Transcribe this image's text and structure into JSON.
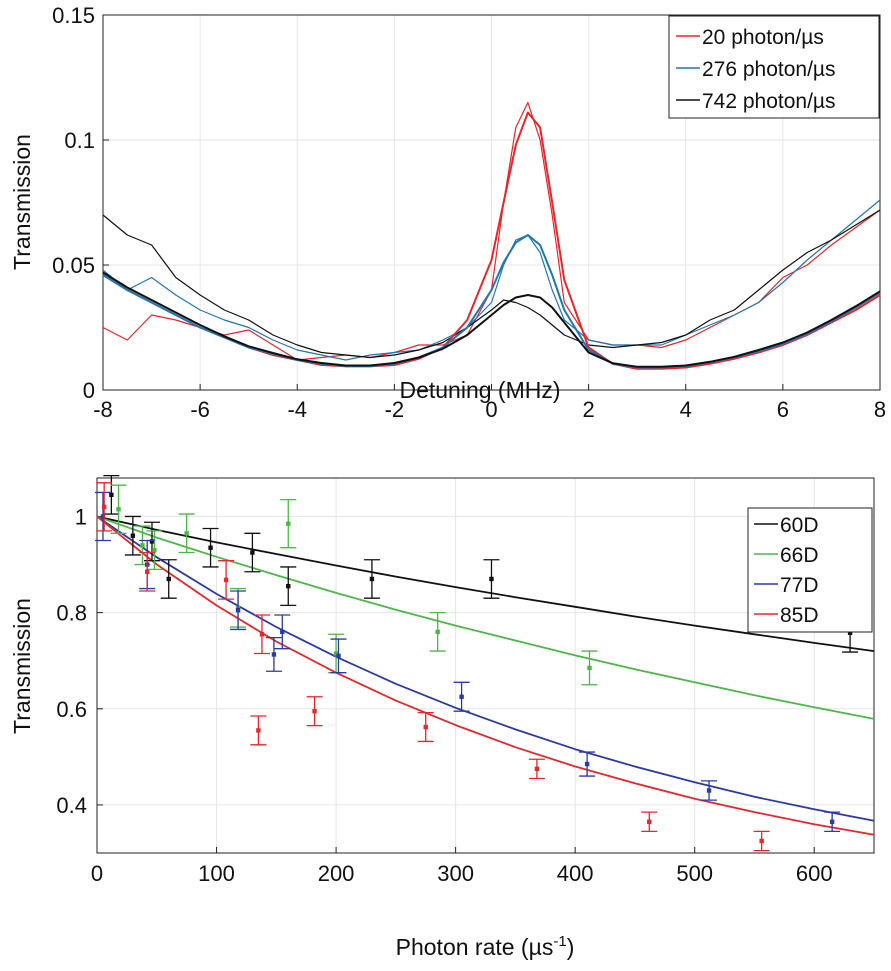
{
  "chart_data": [
    {
      "type": "line",
      "xlabel": "Detuning (MHz)",
      "ylabel": "Transmission",
      "xlim": [
        -8,
        8
      ],
      "ylim": [
        0,
        0.15
      ],
      "xticks": [
        "-8",
        "-6",
        "-4",
        "-2",
        "0",
        "2",
        "4",
        "6",
        "8"
      ],
      "yticks": [
        "0",
        "0.05",
        "0.1",
        "0.15"
      ],
      "grid": true,
      "legend": "top-right",
      "series": [
        {
          "name": "20 photon/µs",
          "color": "#e8262b",
          "x": [
            -8,
            -7.5,
            -7,
            -6.5,
            -6,
            -5.5,
            -5,
            -4.5,
            -4,
            -3.5,
            -3,
            -2.5,
            -2,
            -1.5,
            -1,
            -0.5,
            0,
            0.25,
            0.5,
            0.75,
            1,
            1.25,
            1.5,
            2,
            2.5,
            3,
            3.5,
            4,
            4.5,
            5,
            5.5,
            6,
            6.5,
            7,
            7.5,
            8
          ],
          "measured": [
            0.025,
            0.02,
            0.03,
            0.028,
            0.025,
            0.022,
            0.024,
            0.018,
            0.012,
            0.013,
            0.014,
            0.013,
            0.015,
            0.018,
            0.018,
            0.022,
            0.04,
            0.075,
            0.105,
            0.115,
            0.1,
            0.07,
            0.035,
            0.02,
            0.018,
            0.018,
            0.017,
            0.02,
            0.025,
            0.03,
            0.035,
            0.045,
            0.05,
            0.058,
            0.065,
            0.072
          ],
          "fit": [
            0.046,
            0.04,
            0.035,
            0.03,
            0.025,
            0.021,
            0.017,
            0.014,
            0.012,
            0.01,
            0.0095,
            0.0095,
            0.01,
            0.0125,
            0.017,
            0.028,
            0.052,
            0.075,
            0.098,
            0.111,
            0.105,
            0.075,
            0.044,
            0.017,
            0.0105,
            0.0085,
            0.0085,
            0.009,
            0.0105,
            0.0125,
            0.015,
            0.018,
            0.022,
            0.027,
            0.032,
            0.038
          ]
        },
        {
          "name": "276 photon/µs",
          "color": "#1f77b4",
          "x": [
            -8,
            -7.5,
            -7,
            -6.5,
            -6,
            -5.5,
            -5,
            -4.5,
            -4,
            -3.5,
            -3,
            -2.5,
            -2,
            -1.5,
            -1,
            -0.5,
            0,
            0.25,
            0.5,
            0.75,
            1,
            1.25,
            1.5,
            2,
            2.5,
            3,
            3.5,
            4,
            4.5,
            5,
            5.5,
            6,
            6.5,
            7,
            7.5,
            8
          ],
          "measured": [
            0.048,
            0.04,
            0.045,
            0.038,
            0.032,
            0.028,
            0.025,
            0.02,
            0.016,
            0.014,
            0.012,
            0.014,
            0.015,
            0.016,
            0.02,
            0.025,
            0.035,
            0.05,
            0.06,
            0.062,
            0.055,
            0.04,
            0.028,
            0.02,
            0.018,
            0.018,
            0.018,
            0.022,
            0.026,
            0.03,
            0.035,
            0.043,
            0.052,
            0.06,
            0.068,
            0.076
          ],
          "fit": [
            0.046,
            0.04,
            0.035,
            0.03,
            0.025,
            0.021,
            0.017,
            0.0145,
            0.012,
            0.0105,
            0.0095,
            0.0095,
            0.0105,
            0.013,
            0.017,
            0.025,
            0.04,
            0.051,
            0.059,
            0.062,
            0.058,
            0.046,
            0.032,
            0.016,
            0.0105,
            0.009,
            0.009,
            0.0095,
            0.011,
            0.013,
            0.0155,
            0.0185,
            0.0225,
            0.0275,
            0.033,
            0.039
          ]
        },
        {
          "name": "742 photon/µs",
          "color": "#111111",
          "x": [
            -8,
            -7.5,
            -7,
            -6.5,
            -6,
            -5.5,
            -5,
            -4.5,
            -4,
            -3.5,
            -3,
            -2.5,
            -2,
            -1.5,
            -1,
            -0.5,
            0,
            0.25,
            0.5,
            0.75,
            1,
            1.25,
            1.5,
            2,
            2.5,
            3,
            3.5,
            4,
            4.5,
            5,
            5.5,
            6,
            6.5,
            7,
            7.5,
            8
          ],
          "measured": [
            0.07,
            0.062,
            0.058,
            0.045,
            0.038,
            0.032,
            0.028,
            0.022,
            0.018,
            0.015,
            0.014,
            0.013,
            0.014,
            0.016,
            0.019,
            0.025,
            0.032,
            0.036,
            0.035,
            0.033,
            0.03,
            0.026,
            0.022,
            0.018,
            0.017,
            0.018,
            0.019,
            0.022,
            0.028,
            0.032,
            0.04,
            0.048,
            0.055,
            0.06,
            0.066,
            0.072
          ],
          "fit": [
            0.047,
            0.041,
            0.036,
            0.031,
            0.026,
            0.0215,
            0.0175,
            0.0148,
            0.0123,
            0.0108,
            0.0098,
            0.0098,
            0.0108,
            0.013,
            0.0165,
            0.022,
            0.03,
            0.034,
            0.037,
            0.038,
            0.037,
            0.033,
            0.027,
            0.015,
            0.0107,
            0.0093,
            0.0093,
            0.0098,
            0.0113,
            0.0133,
            0.016,
            0.019,
            0.023,
            0.028,
            0.0335,
            0.0395
          ]
        }
      ]
    },
    {
      "type": "scatter",
      "xlabel": "Photon rate (µs",
      "xlabel_sup": "-1",
      "xlabel_close": ")",
      "ylabel": "Transmission",
      "xlim": [
        0,
        650
      ],
      "ylim": [
        0.3,
        1.08
      ],
      "xticks": [
        "0",
        "100",
        "200",
        "300",
        "400",
        "500",
        "600"
      ],
      "yticks": [
        "0.4",
        "0.6",
        "0.8",
        "1"
      ],
      "grid": true,
      "legend": "top-right",
      "series": [
        {
          "name": "60D",
          "color": "#111111",
          "x": [
            12,
            30,
            46,
            60,
            95,
            130,
            160,
            230,
            330,
            630
          ],
          "y": [
            1.045,
            0.96,
            0.948,
            0.87,
            0.935,
            0.925,
            0.855,
            0.87,
            0.87,
            0.758
          ],
          "err": [
            0.04,
            0.04,
            0.04,
            0.04,
            0.04,
            0.04,
            0.04,
            0.04,
            0.04,
            0.04
          ],
          "fit_x": [
            0,
            50,
            100,
            150,
            200,
            250,
            300,
            350,
            400,
            450,
            500,
            550,
            600,
            650
          ],
          "fit_y": [
            1.0,
            0.972,
            0.946,
            0.922,
            0.898,
            0.875,
            0.853,
            0.832,
            0.812,
            0.792,
            0.773,
            0.755,
            0.737,
            0.72
          ]
        },
        {
          "name": "66D",
          "color": "#4cb848",
          "x": [
            18,
            38,
            48,
            75,
            118,
            160,
            200,
            285,
            412
          ],
          "y": [
            1.015,
            0.94,
            0.93,
            0.965,
            0.81,
            0.985,
            0.715,
            0.76,
            0.685
          ],
          "err": [
            0.05,
            0.04,
            0.04,
            0.04,
            0.04,
            0.05,
            0.04,
            0.04,
            0.035
          ],
          "fit_x": [
            0,
            50,
            100,
            150,
            200,
            250,
            300,
            350,
            400,
            450,
            500,
            550,
            600,
            650
          ],
          "fit_y": [
            1.0,
            0.956,
            0.916,
            0.878,
            0.841,
            0.806,
            0.773,
            0.742,
            0.711,
            0.682,
            0.655,
            0.628,
            0.603,
            0.579
          ]
        },
        {
          "name": "77D",
          "color": "#2a3aa8",
          "x": [
            5,
            42,
            118,
            148,
            155,
            202,
            305,
            410,
            512,
            615
          ],
          "y": [
            1.0,
            0.9,
            0.805,
            0.713,
            0.76,
            0.71,
            0.625,
            0.485,
            0.43,
            0.365
          ],
          "err": [
            0.05,
            0.05,
            0.04,
            0.035,
            0.035,
            0.035,
            0.03,
            0.025,
            0.02,
            0.02
          ],
          "fit_x": [
            0,
            50,
            100,
            150,
            200,
            250,
            300,
            350,
            400,
            450,
            500,
            550,
            600,
            650
          ],
          "fit_y": [
            1.0,
            0.915,
            0.839,
            0.77,
            0.708,
            0.652,
            0.602,
            0.557,
            0.516,
            0.48,
            0.447,
            0.417,
            0.391,
            0.367
          ]
        },
        {
          "name": "85D",
          "color": "#e8262b",
          "x": [
            6,
            42,
            108,
            135,
            138,
            182,
            275,
            368,
            462,
            556
          ],
          "y": [
            1.02,
            0.885,
            0.868,
            0.555,
            0.755,
            0.595,
            0.562,
            0.475,
            0.365,
            0.325
          ],
          "err": [
            0.05,
            0.04,
            0.04,
            0.03,
            0.04,
            0.03,
            0.03,
            0.02,
            0.02,
            0.02
          ],
          "fit_x": [
            0,
            50,
            100,
            150,
            200,
            250,
            300,
            350,
            400,
            450,
            500,
            550,
            600,
            650
          ],
          "fit_y": [
            1.0,
            0.9,
            0.815,
            0.74,
            0.675,
            0.617,
            0.566,
            0.52,
            0.48,
            0.445,
            0.413,
            0.385,
            0.36,
            0.338
          ]
        }
      ]
    }
  ]
}
